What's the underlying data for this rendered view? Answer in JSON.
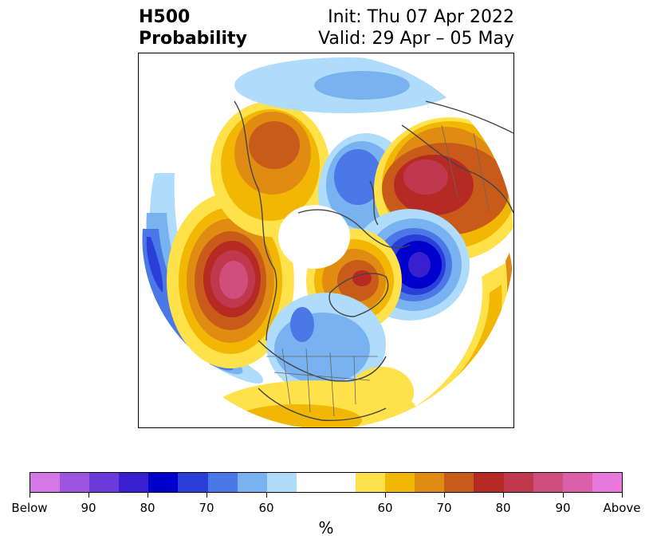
{
  "title": {
    "left_line1": "H500",
    "left_line2": "Probability",
    "right_line1": "Init: Thu 07 Apr 2022",
    "right_line2": "Valid: 29 Apr – 05 May"
  },
  "map": {
    "projection": "north-polar-stereographic",
    "variable": "500 hPa height anomaly probability",
    "features": [
      {
        "name": "western-canada-above",
        "category": "above",
        "peak_percent": 75
      },
      {
        "name": "northeast-pacific-below",
        "category": "below",
        "peak_percent": 70
      },
      {
        "name": "gulf-of-alaska-above",
        "category": "above",
        "peak_percent": 90
      },
      {
        "name": "greenland-above",
        "category": "above",
        "peak_percent": 80
      },
      {
        "name": "north-atlantic-below",
        "category": "below",
        "peak_percent": 85
      },
      {
        "name": "scandinavia-below",
        "category": "below",
        "peak_percent": 70
      },
      {
        "name": "central-us-below",
        "category": "below",
        "peak_percent": 65
      },
      {
        "name": "western-russia-above",
        "category": "above",
        "peak_percent": 85
      },
      {
        "name": "southeast-us-above",
        "category": "above",
        "peak_percent": 60
      }
    ]
  },
  "colorbar": {
    "units": "%",
    "tick_labels": [
      "Below",
      "90",
      "80",
      "70",
      "60",
      "60",
      "70",
      "80",
      "90",
      "Above"
    ],
    "below_colors": [
      "#d478e8",
      "#9b55e0",
      "#6a3bd9",
      "#3a1fd0",
      "#0000cc",
      "#2a3ed8",
      "#4a78e6",
      "#78b2f0",
      "#aedcfa"
    ],
    "neutral_color": "#ffffff",
    "above_colors": [
      "#ffe14a",
      "#f2b705",
      "#e08c12",
      "#c85a1a",
      "#b52a22",
      "#c0384e",
      "#cf4e7c",
      "#db60a8",
      "#e878dc"
    ]
  }
}
